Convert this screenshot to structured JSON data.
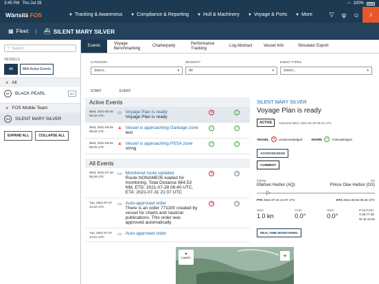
{
  "statusbar": {
    "time": "3:45 PM",
    "date": "Thu Jul 29",
    "battery": "100%"
  },
  "nav": {
    "brand": "Wärtsilä",
    "brand_accent": "FOS",
    "items": [
      {
        "label": "Tracking & Awareness"
      },
      {
        "label": "Compliance & Reporting"
      },
      {
        "label": "Hull & Machinery"
      },
      {
        "label": "Voyage & Ports"
      },
      {
        "label": "More"
      }
    ]
  },
  "fleetbar": {
    "fleet_label": "Fleet",
    "ship_name": "SILENT MARY SILVER"
  },
  "sidebar": {
    "search_placeholder": "Search",
    "vessels_label": "VESSELS",
    "filter_all": "All",
    "filter_active": "With Active Events",
    "group_all": "All",
    "vessel1": "BLACK PEARL",
    "vessel1_badge": "BP",
    "vessel1_tag": "AIS",
    "group_team": "FOS Mobile Team",
    "vessel2": "SILENT MARY SILVER",
    "vessel2_badge": "SM",
    "expand_all": "EXPAND ALL",
    "collapse_all": "COLLAPSE ALL"
  },
  "tabs": [
    "Events",
    "Voyage Benchmarking",
    "Charterparty",
    "Performance Tracking",
    "Log Abstract",
    "Vessel Info",
    "Simulator Export"
  ],
  "filters": {
    "category_label": "CATEGORY",
    "category_value": "Select...",
    "severity_label": "SEVERITY",
    "severity_value": "All",
    "types_label": "EVENT TYPES",
    "types_value": "Select..."
  },
  "list_head": {
    "start": "START",
    "event": "EVENT"
  },
  "active_title": "Active Events",
  "all_title": "All Events",
  "active_events": [
    {
      "time": "Wed, 2021-05-26 08:42 UTC",
      "title": "Voyage Plan is ready",
      "desc": "Voyage Plan is ready",
      "icon": "chat-icon",
      "s1": "x",
      "s2": "ok"
    },
    {
      "time": "Wed, 2021-05-26 08:29 UTC",
      "title": "Vessel is approaching Garbage zone",
      "desc": "test",
      "icon": "warning-icon",
      "s1": "ok",
      "s2": "ok"
    },
    {
      "time": "Wed, 2021-05-26 08:25 UTC",
      "title": "Vessel is approaching PSSA zone",
      "desc": "string",
      "icon": "warning-icon",
      "s1": "ok",
      "s2": "ok"
    }
  ],
  "all_events": [
    {
      "time": "Wed, 2021-07-28 06:40 UTC",
      "title": "Monitored route updated",
      "desc": "Route NONAME05 loaded for monitoring. Total Distance 864.53 NM, ETD: 2021-07-28 06:40 UTC, ETA: 2021-07-31 21:07 UTC",
      "icon": "chat-icon",
      "s1": "x",
      "s2": "clock"
    },
    {
      "time": "Tue, 2021-07-27 14:22 UTC",
      "title": "Auto-approved order",
      "desc": "There is an order 771100 created by vessel for charts and nautical publications. This order was approved automatically",
      "icon": "chat-icon",
      "s1": "x",
      "s2": "clock"
    },
    {
      "time": "Tue, 2021-07-27 14:21 UTC",
      "title": "Auto-approved order",
      "desc": "",
      "icon": "chat-icon",
      "s1": "",
      "s2": ""
    }
  ],
  "detail": {
    "vessel": "SILENT MARY SILVER",
    "title": "Voyage Plan is ready",
    "badge": "ACTIVE",
    "detected": "Detected Wed, 2021-05-26 08:42 UTC",
    "vessel_ack_label": "VESSEL",
    "vessel_ack_value": "Unacknowledged",
    "shore_ack_label": "SHORE",
    "shore_ack_value": "Acknowledged",
    "ack_button": "ACKNOWLEDGE",
    "comment_button": "COMMENT",
    "from_label": "FROM",
    "to_label": "TO",
    "from": "Ellefsen Harbor (AQ)",
    "to": "Prince Olav Harbor (GS)",
    "pta_label": "PTA",
    "pta": "2021-07-31 21:07 UTC",
    "eta_label": "ETA",
    "eta": "2021-08-06 05:45 UTC",
    "sog_label": "SOG",
    "sog": "1.0 kn",
    "cog_label": "COG",
    "cog": "0.0°",
    "hdg_label": "HDG",
    "hdg": "0.0°",
    "pos_label": "POSITION",
    "pos_lat": "S 66.77.45",
    "pos_lon": "W 45 13.52",
    "rtm_button": "REAL TIME MONITORING",
    "layers": "Layers"
  },
  "colors": {
    "nav": "#1d3a52",
    "accent": "#e8742b",
    "alarm": "#e8562a",
    "link": "#1a6aa7"
  }
}
